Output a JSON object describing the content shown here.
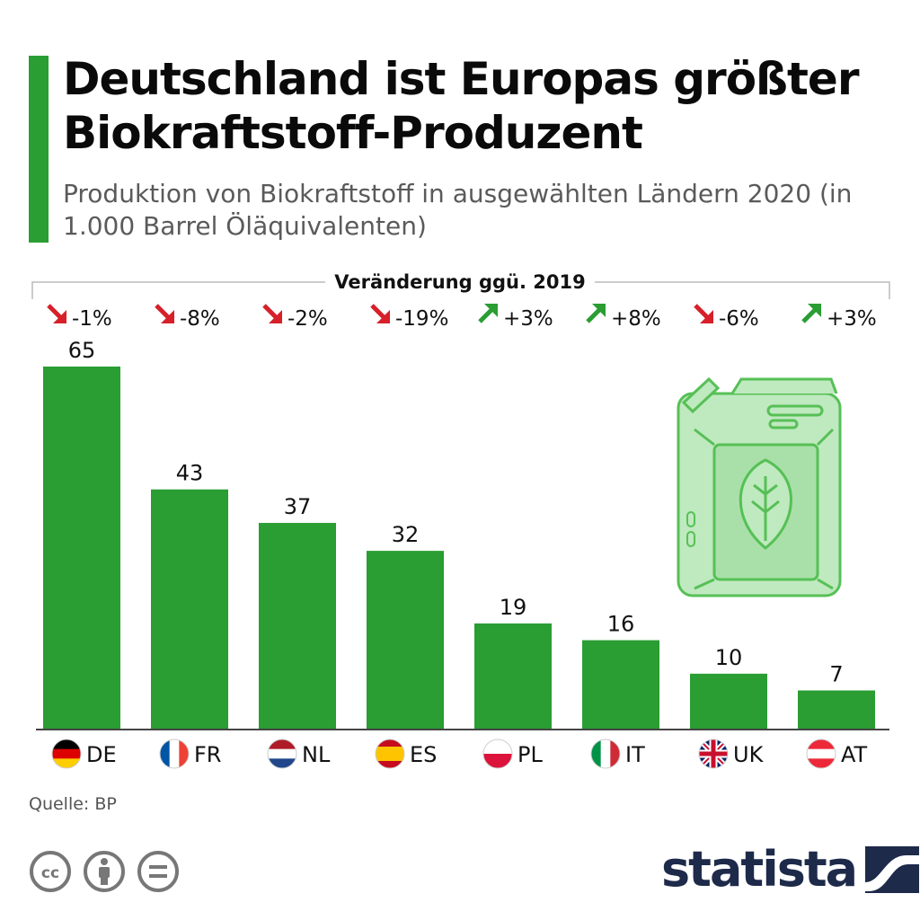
{
  "header": {
    "title": "Deutschland ist Europas größter Biokraftstoff-Produzent",
    "subtitle": "Produktion von Biokraftstoff in ausgewählten Ländern 2020 (in 1.000 Barrel Öläquivalenten)"
  },
  "colors": {
    "bar": "#2a9d33",
    "accent": "#2a9d33",
    "arrow_down": "#d6202a",
    "arrow_up": "#2a9d33",
    "brand": "#1e2a4a"
  },
  "chart_data": {
    "type": "bar",
    "title": "Deutschland ist Europas größter Biokraftstoff-Produzent",
    "subtitle": "Produktion von Biokraftstoff in ausgewählten Ländern 2020 (in 1.000 Barrel Öläquivalenten)",
    "categories": [
      "DE",
      "FR",
      "NL",
      "ES",
      "PL",
      "IT",
      "UK",
      "AT"
    ],
    "values": [
      65,
      43,
      37,
      32,
      19,
      16,
      10,
      7
    ],
    "ylim": [
      0,
      65
    ],
    "grid": false,
    "change_header": "Veränderung ggü. 2019",
    "change_labels": [
      "-1%",
      "-8%",
      "-2%",
      "-19%",
      "+3%",
      "+8%",
      "-6%",
      "+3%"
    ],
    "change_direction": [
      "down",
      "down",
      "down",
      "down",
      "up",
      "up",
      "down",
      "up"
    ],
    "flags": [
      "flag-de-icon",
      "flag-fr-icon",
      "flag-nl-icon",
      "flag-es-icon",
      "flag-pl-icon",
      "flag-it-icon",
      "flag-uk-icon",
      "flag-at-icon"
    ]
  },
  "illustration": {
    "icon": "jerry-can-leaf-icon"
  },
  "footer": {
    "source": "Quelle: BP",
    "license_icons": [
      "cc-icon",
      "attribution-icon",
      "no-derivatives-icon"
    ],
    "brand": "statista",
    "brand_icon": "statista-logo-icon"
  }
}
